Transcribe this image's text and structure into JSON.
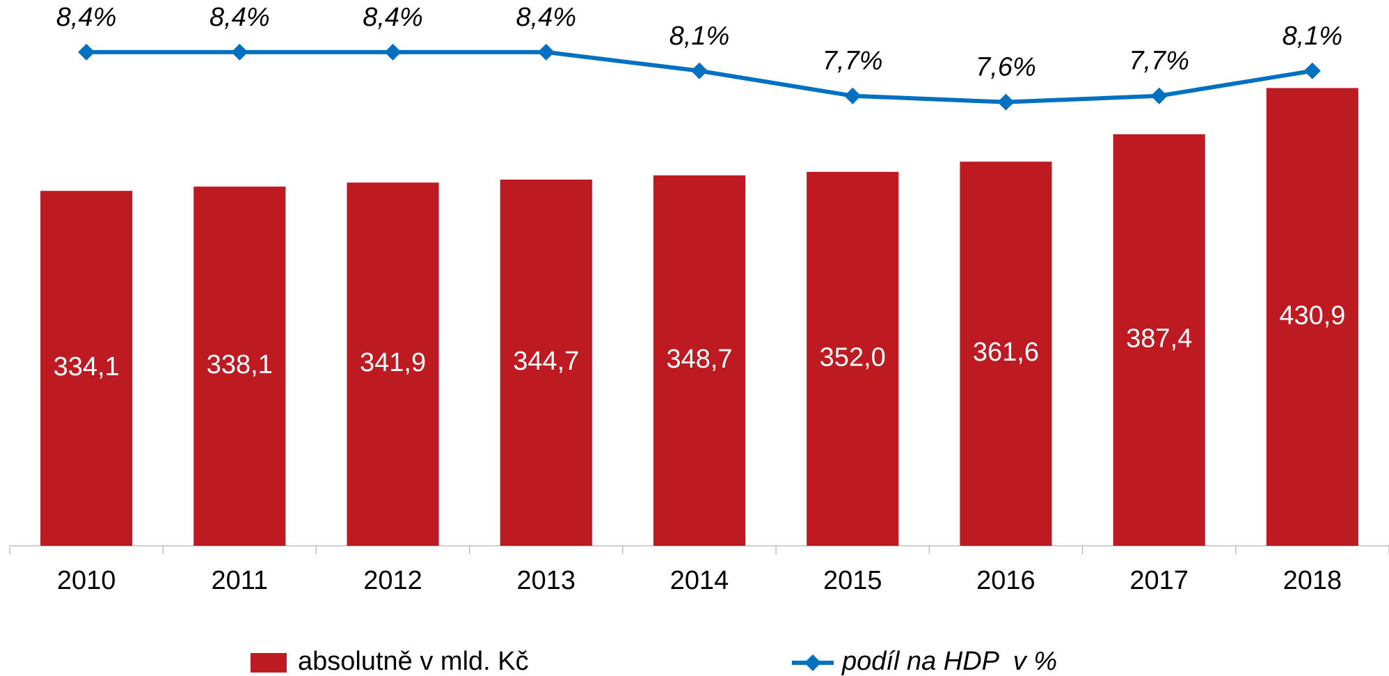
{
  "chart_data": {
    "type": "bar",
    "categories": [
      "2010",
      "2011",
      "2012",
      "2013",
      "2014",
      "2015",
      "2016",
      "2017",
      "2018"
    ],
    "ylim": [
      0,
      500
    ],
    "y2lim": [
      0.5,
      9
    ],
    "series": [
      {
        "name": "absolutně v mld. Kč",
        "type": "bar",
        "color": "#be1a22",
        "values": [
          334.1,
          338.1,
          341.9,
          344.7,
          348.7,
          352.0,
          361.6,
          387.4,
          430.9
        ],
        "value_labels": [
          "334,1",
          "338,1",
          "341,9",
          "344,7",
          "348,7",
          "352,0",
          "361,6",
          "387,4",
          "430,9"
        ]
      },
      {
        "name": "podíl na HDP  v %",
        "type": "line",
        "axis": "y2",
        "color": "#0070c0",
        "values": [
          8.4,
          8.4,
          8.4,
          8.4,
          8.1,
          7.7,
          7.6,
          7.7,
          8.1
        ],
        "value_labels": [
          "8,4%",
          "8,4%",
          "8,4%",
          "8,4%",
          "8,1%",
          "7,7%",
          "7,6%",
          "7,7%",
          "8,1%"
        ]
      }
    ]
  }
}
